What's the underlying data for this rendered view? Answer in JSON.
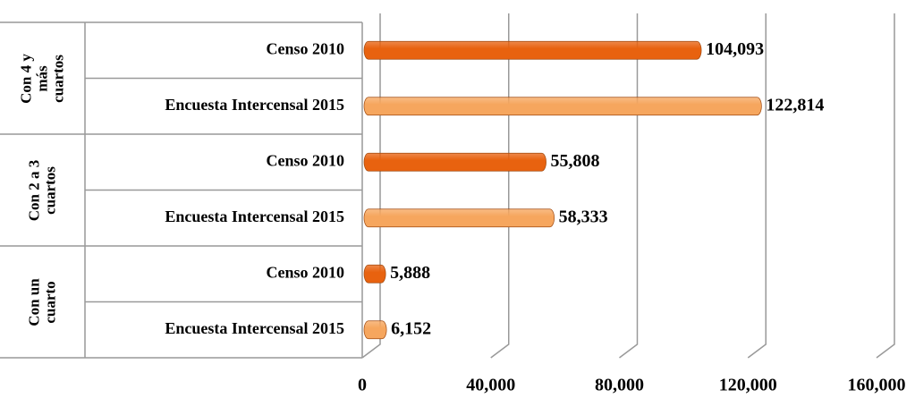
{
  "chart_data": {
    "type": "bar",
    "orientation": "horizontal",
    "categories": [
      "Con 4 y más cuartos",
      "Con 2 a 3 cuartos",
      "Con un cuarto"
    ],
    "series": [
      {
        "name": "Censo 2010",
        "color": "#e8620f",
        "values": [
          104093,
          55808,
          5888
        ],
        "value_labels": [
          "104,093",
          "55,808",
          "5,888"
        ]
      },
      {
        "name": "Encuesta Intercensal 2015",
        "color": "#f6a65e",
        "values": [
          122814,
          58333,
          6152
        ],
        "value_labels": [
          "122,814",
          "58,333",
          "6,152"
        ]
      }
    ],
    "xlim": [
      0,
      160000
    ],
    "xticks": [
      0,
      {
        "value": 40000,
        "label": "40,000"
      },
      {
        "value": 80000,
        "label": "80,000"
      },
      {
        "value": 120000,
        "label": "120,000"
      },
      {
        "value": 160000,
        "label": "160,000"
      }
    ],
    "grid": true
  }
}
